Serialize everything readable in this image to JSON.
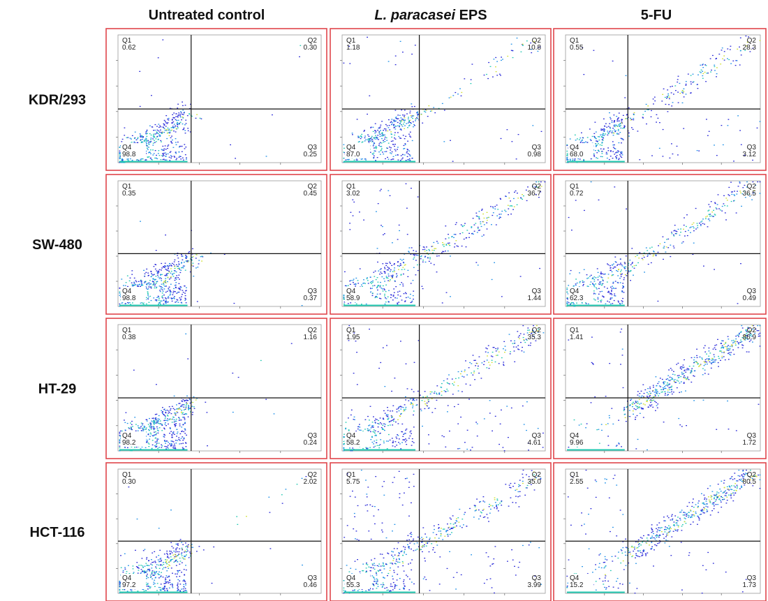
{
  "chart_data": {
    "type": "scatter",
    "plot_kind": "flow-cytometry quadrant density plots",
    "columns": [
      {
        "key": "untreated",
        "label_parts": [
          {
            "text": "Untreated control",
            "italic": false
          }
        ]
      },
      {
        "key": "eps",
        "label_parts": [
          {
            "text": "L. paracasei",
            "italic": true
          },
          {
            "text": " EPS",
            "italic": false
          }
        ]
      },
      {
        "key": "fu",
        "label_parts": [
          {
            "text": "5-FU",
            "italic": false
          }
        ]
      }
    ],
    "rows": [
      "KDR/293",
      "SW-480",
      "HT-29",
      "HCT-116"
    ],
    "quadrant_names": [
      "Q1",
      "Q2",
      "Q3",
      "Q4"
    ],
    "panel_border_color": "#e0454b",
    "density_colors": [
      "#2828d8",
      "#1e90e8",
      "#20c8b0",
      "#d0e030"
    ],
    "panels": [
      {
        "row": "KDR/293",
        "column": "untreated",
        "q1": "0.62",
        "q2": "0.30",
        "q3": "0.25",
        "q4": "98.8"
      },
      {
        "row": "KDR/293",
        "column": "eps",
        "q1": "1.18",
        "q2": "10.8",
        "q3": "0.98",
        "q4": "87.0"
      },
      {
        "row": "KDR/293",
        "column": "fu",
        "q1": "0.55",
        "q2": "28.3",
        "q3": "3.12",
        "q4": "68.0"
      },
      {
        "row": "SW-480",
        "column": "untreated",
        "q1": "0.35",
        "q2": "0.45",
        "q3": "0.37",
        "q4": "98.8"
      },
      {
        "row": "SW-480",
        "column": "eps",
        "q1": "3.02",
        "q2": "36.7",
        "q3": "1.44",
        "q4": "58.9"
      },
      {
        "row": "SW-480",
        "column": "fu",
        "q1": "0.72",
        "q2": "36.5",
        "q3": "0.49",
        "q4": "62.3"
      },
      {
        "row": "HT-29",
        "column": "untreated",
        "q1": "0.38",
        "q2": "1.16",
        "q3": "0.24",
        "q4": "98.2"
      },
      {
        "row": "HT-29",
        "column": "eps",
        "q1": "1.95",
        "q2": "35.3",
        "q3": "4.61",
        "q4": "58.2"
      },
      {
        "row": "HT-29",
        "column": "fu",
        "q1": "1.41",
        "q2": "86.9",
        "q3": "1.72",
        "q4": "9.96"
      },
      {
        "row": "HCT-116",
        "column": "untreated",
        "q1": "0.30",
        "q2": "2.02",
        "q3": "0.46",
        "q4": "97.2"
      },
      {
        "row": "HCT-116",
        "column": "eps",
        "q1": "5.75",
        "q2": "35.0",
        "q3": "3.99",
        "q4": "55.3"
      },
      {
        "row": "HCT-116",
        "column": "fu",
        "q1": "2.55",
        "q2": "80.5",
        "q3": "1.73",
        "q4": "15.2"
      }
    ],
    "grid": false,
    "legend": "none"
  }
}
